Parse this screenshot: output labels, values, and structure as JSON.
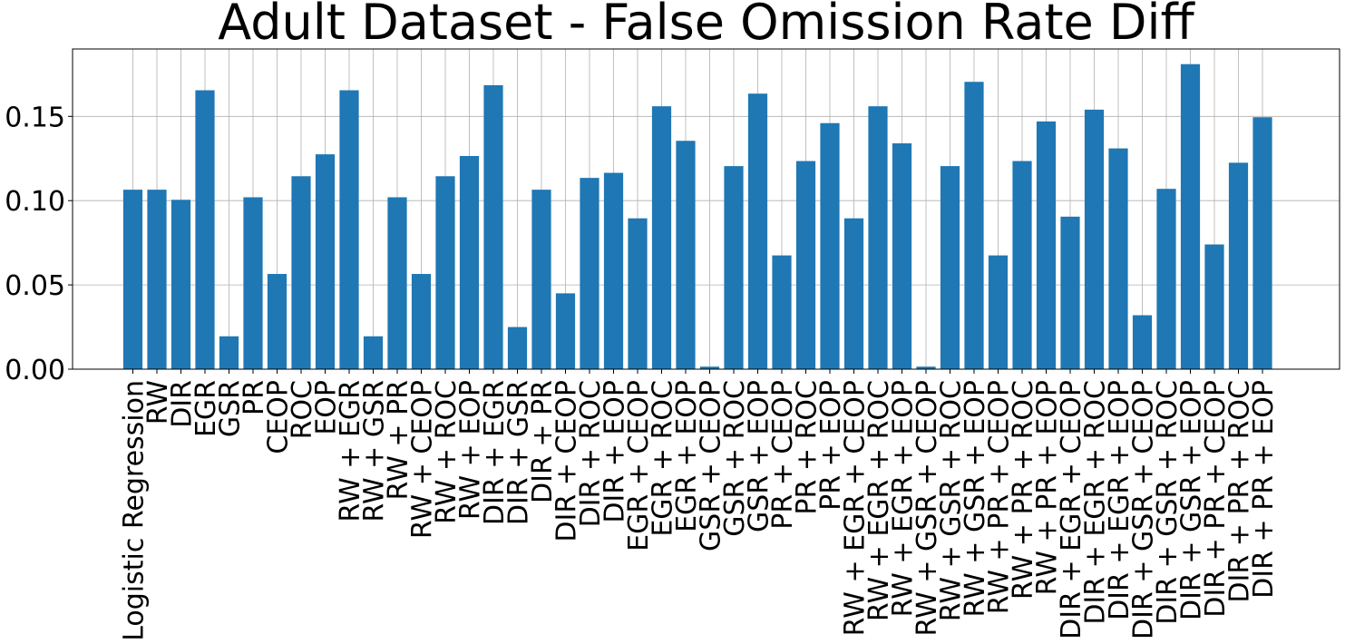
{
  "chart_data": {
    "type": "bar",
    "title": "Adult Dataset - False Omission Rate Diff",
    "xlabel": "",
    "ylabel": "",
    "ylim": [
      0,
      0.19
    ],
    "yticks": [
      "0.00",
      "0.05",
      "0.10",
      "0.15"
    ],
    "ytick_values": [
      0,
      0.05,
      0.1,
      0.15
    ],
    "grid": true,
    "bar_color": "#1f77b4",
    "categories": [
      "Logistic Regression",
      "RW",
      "DIR",
      "EGR",
      "GSR",
      "PR",
      "CEOP",
      "ROC",
      "EOP",
      "RW + EGR",
      "RW + GSR",
      "RW + PR",
      "RW + CEOP",
      "RW + ROC",
      "RW + EOP",
      "DIR + EGR",
      "DIR + GSR",
      "DIR + PR",
      "DIR + CEOP",
      "DIR + ROC",
      "DIR + EOP",
      "EGR + CEOP",
      "EGR + ROC",
      "EGR + EOP",
      "GSR + CEOP",
      "GSR + ROC",
      "GSR + EOP",
      "PR + CEOP",
      "PR + ROC",
      "PR + EOP",
      "RW + EGR + CEOP",
      "RW + EGR + ROC",
      "RW + EGR + EOP",
      "RW + GSR + CEOP",
      "RW + GSR + ROC",
      "RW + GSR + EOP",
      "RW + PR + CEOP",
      "RW + PR + ROC",
      "RW + PR + EOP",
      "DIR + EGR + CEOP",
      "DIR + EGR + ROC",
      "DIR + EGR + EOP",
      "DIR + GSR + CEOP",
      "DIR + GSR + ROC",
      "DIR + GSR + EOP",
      "DIR + PR + CEOP",
      "DIR + PR + ROC",
      "DIR + PR + EOP"
    ],
    "values": [
      0.1065,
      0.1065,
      0.1005,
      0.1655,
      0.0195,
      0.102,
      0.0565,
      0.1145,
      0.1275,
      0.1655,
      0.0195,
      0.102,
      0.0565,
      0.1145,
      0.1265,
      0.1685,
      0.025,
      0.1065,
      0.045,
      0.1135,
      0.1165,
      0.0895,
      0.156,
      0.1355,
      0.0015,
      0.1205,
      0.1635,
      0.0675,
      0.1235,
      0.146,
      0.0895,
      0.156,
      0.134,
      0.0015,
      0.1205,
      0.1705,
      0.0675,
      0.1235,
      0.147,
      0.0905,
      0.154,
      0.131,
      0.032,
      0.107,
      0.181,
      0.074,
      0.1225,
      0.1495
    ]
  }
}
